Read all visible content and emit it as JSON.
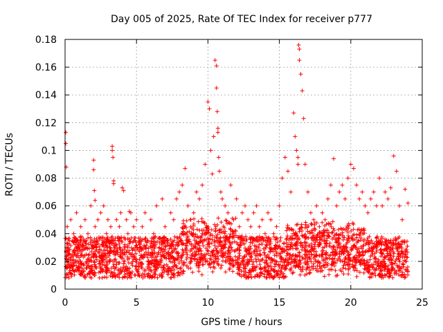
{
  "chart_data": {
    "type": "scatter",
    "title": "Day 005 of 2025, Rate Of TEC Index for receiver p777",
    "xlabel": "GPS time / hours",
    "ylabel": "ROTI / TECUs",
    "xlim": [
      0,
      25
    ],
    "ylim": [
      0,
      0.18
    ],
    "grid": true,
    "marker": "+",
    "color": "#ff0000",
    "x_ticks": [
      0,
      5,
      10,
      15,
      20,
      25
    ],
    "x_tick_labels": [
      "0",
      "5",
      "10",
      "15",
      "20",
      "25"
    ],
    "y_ticks": [
      0,
      0.02,
      0.04,
      0.06,
      0.08,
      0.1,
      0.12,
      0.14,
      0.16,
      0.18
    ],
    "y_tick_labels": [
      "0",
      "0.02",
      "0.04",
      "0.06",
      "0.08",
      "0.1",
      "0.12",
      "0.14",
      "0.16",
      "0.18"
    ],
    "series": [
      {
        "name": "ROTI",
        "x": [
          0.05,
          0.05,
          0.08,
          0.1,
          0.15,
          0.2,
          0.3,
          0.4,
          0.5,
          0.6,
          0.7,
          0.8,
          0.9,
          1.0,
          1.1,
          1.2,
          1.3,
          1.4,
          1.5,
          1.6,
          1.7,
          1.8,
          1.9,
          2.0,
          2.0,
          2.05,
          2.1,
          2.1,
          2.2,
          2.3,
          2.4,
          2.5,
          2.6,
          2.7,
          2.8,
          2.9,
          3.0,
          3.1,
          3.2,
          3.3,
          3.3,
          3.35,
          3.4,
          3.4,
          3.5,
          3.6,
          3.7,
          3.8,
          3.9,
          4.0,
          4.1,
          4.2,
          4.3,
          4.4,
          4.5,
          4.6,
          4.7,
          4.8,
          4.9,
          5.0,
          5.2,
          5.4,
          5.6,
          5.8,
          6.0,
          6.2,
          6.4,
          6.6,
          6.8,
          7.0,
          7.2,
          7.4,
          7.6,
          7.8,
          8.0,
          8.2,
          8.4,
          8.6,
          8.8,
          9.0,
          9.2,
          9.4,
          9.6,
          9.8,
          10.0,
          10.1,
          10.2,
          10.3,
          10.4,
          10.5,
          10.6,
          10.6,
          10.65,
          10.7,
          10.7,
          10.75,
          10.8,
          10.9,
          11.0,
          11.2,
          11.4,
          11.6,
          11.8,
          12.0,
          12.2,
          12.4,
          12.6,
          12.8,
          13.0,
          13.2,
          13.4,
          13.6,
          13.8,
          14.0,
          14.2,
          14.4,
          14.6,
          14.8,
          15.0,
          15.2,
          15.4,
          15.6,
          15.8,
          16.0,
          16.1,
          16.2,
          16.3,
          16.3,
          16.35,
          16.4,
          16.4,
          16.5,
          16.6,
          16.7,
          16.8,
          17.0,
          17.2,
          17.4,
          17.6,
          17.8,
          18.0,
          18.2,
          18.4,
          18.6,
          18.8,
          19.0,
          19.2,
          19.4,
          19.6,
          19.8,
          20.0,
          20.2,
          20.4,
          20.6,
          20.8,
          21.0,
          21.2,
          21.4,
          21.6,
          21.8,
          22.0,
          22.2,
          22.4,
          22.6,
          22.8,
          23.0,
          23.2,
          23.4,
          23.6,
          23.8,
          24.0
        ],
        "y": [
          0.113,
          0.105,
          0.088,
          0.03,
          0.045,
          0.02,
          0.035,
          0.05,
          0.015,
          0.04,
          0.025,
          0.055,
          0.02,
          0.03,
          0.045,
          0.015,
          0.035,
          0.05,
          0.02,
          0.04,
          0.025,
          0.06,
          0.03,
          0.093,
          0.086,
          0.071,
          0.064,
          0.045,
          0.03,
          0.05,
          0.02,
          0.055,
          0.035,
          0.06,
          0.025,
          0.04,
          0.05,
          0.02,
          0.045,
          0.103,
          0.1,
          0.095,
          0.078,
          0.076,
          0.035,
          0.05,
          0.025,
          0.045,
          0.055,
          0.073,
          0.071,
          0.03,
          0.05,
          0.04,
          0.056,
          0.055,
          0.025,
          0.045,
          0.035,
          0.05,
          0.03,
          0.045,
          0.055,
          0.035,
          0.05,
          0.04,
          0.06,
          0.03,
          0.065,
          0.045,
          0.035,
          0.055,
          0.05,
          0.065,
          0.07,
          0.075,
          0.087,
          0.06,
          0.05,
          0.055,
          0.07,
          0.065,
          0.075,
          0.09,
          0.135,
          0.13,
          0.1,
          0.083,
          0.11,
          0.165,
          0.161,
          0.145,
          0.128,
          0.116,
          0.113,
          0.095,
          0.085,
          0.07,
          0.065,
          0.06,
          0.055,
          0.075,
          0.05,
          0.065,
          0.045,
          0.055,
          0.06,
          0.05,
          0.045,
          0.055,
          0.06,
          0.045,
          0.05,
          0.04,
          0.055,
          0.05,
          0.04,
          0.045,
          0.06,
          0.08,
          0.095,
          0.085,
          0.07,
          0.127,
          0.11,
          0.1,
          0.095,
          0.09,
          0.176,
          0.173,
          0.165,
          0.155,
          0.143,
          0.123,
          0.09,
          0.07,
          0.055,
          0.05,
          0.06,
          0.045,
          0.055,
          0.05,
          0.065,
          0.075,
          0.094,
          0.06,
          0.07,
          0.075,
          0.065,
          0.08,
          0.09,
          0.087,
          0.075,
          0.065,
          0.07,
          0.06,
          0.055,
          0.065,
          0.07,
          0.06,
          0.08,
          0.06,
          0.07,
          0.065,
          0.073,
          0.096,
          0.085,
          0.06,
          0.05,
          0.072,
          0.062
        ]
      }
    ]
  }
}
